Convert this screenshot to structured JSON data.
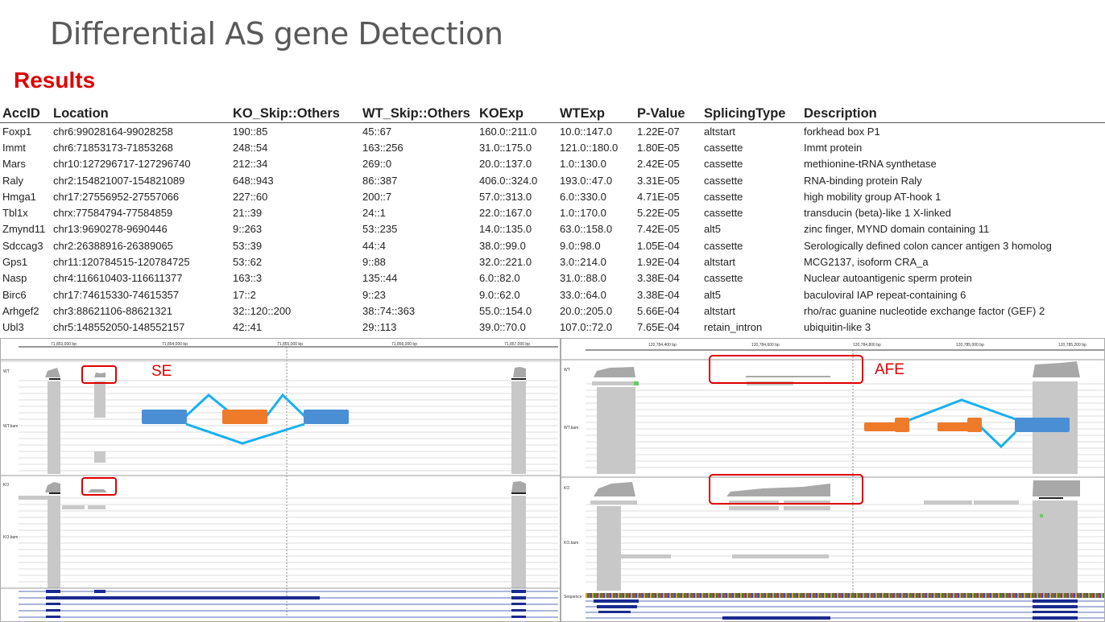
{
  "title": "Differential AS gene Detection",
  "subtitle": "Results",
  "table": {
    "columns": [
      "AccID",
      "Location",
      "KO_Skip::Others",
      "WT_Skip::Others",
      "KOExp",
      "WTExp",
      "P-Value",
      "SplicingType",
      "Description"
    ],
    "rows": [
      [
        "Foxp1",
        "chr6:99028164-99028258",
        "190::85",
        "45::67",
        "160.0::211.0",
        "10.0::147.0",
        "1.22E-07",
        "altstart",
        "forkhead box P1"
      ],
      [
        "Immt",
        "chr6:71853173-71853268",
        "248::54",
        "163::256",
        "31.0::175.0",
        "121.0::180.0",
        "1.80E-05",
        "cassette",
        "Immt protein"
      ],
      [
        "Mars",
        "chr10:127296717-127296740",
        "212::34",
        "269::0",
        "20.0::137.0",
        "1.0::130.0",
        "2.42E-05",
        "cassette",
        "methionine-tRNA synthetase"
      ],
      [
        "Raly",
        "chr2:154821007-154821089",
        "648::943",
        "86::387",
        "406.0::324.0",
        "193.0::47.0",
        "3.31E-05",
        "cassette",
        "RNA-binding protein Raly"
      ],
      [
        "Hmga1",
        "chr17:27556952-27557066",
        "227::60",
        "200::7",
        "57.0::313.0",
        "6.0::330.0",
        "4.71E-05",
        "cassette",
        "high mobility group AT-hook 1"
      ],
      [
        "Tbl1x",
        "chrx:77584794-77584859",
        "21::39",
        "24::1",
        "22.0::167.0",
        "1.0::170.0",
        "5.22E-05",
        "cassette",
        "transducin (beta)-like 1 X-linked"
      ],
      [
        "Zmynd11",
        "chr13:9690278-9690446",
        "9::263",
        "53::235",
        "14.0::135.0",
        "63.0::158.0",
        "7.42E-05",
        "alt5",
        "zinc finger, MYND domain containing 11"
      ],
      [
        "Sdccag3",
        "chr2:26388916-26389065",
        "53::39",
        "44::4",
        "38.0::99.0",
        "9.0::98.0",
        "1.05E-04",
        "cassette",
        "Serologically defined colon cancer antigen 3 homolog"
      ],
      [
        "Gps1",
        "chr11:120784515-120784725",
        "53::62",
        "9::88",
        "32.0::221.0",
        "3.0::214.0",
        "1.92E-04",
        "altstart",
        "MCG2137, isoform CRA_a"
      ],
      [
        "Nasp",
        "chr4:116610403-116611377",
        "163::3",
        "135::44",
        "6.0::82.0",
        "31.0::88.0",
        "3.38E-04",
        "cassette",
        "Nuclear autoantigenic sperm protein"
      ],
      [
        "Birc6",
        "chr17:74615330-74615357",
        "17::2",
        "9::23",
        "9.0::62.0",
        "33.0::64.0",
        "3.38E-04",
        "alt5",
        "baculoviral IAP repeat-containing 6"
      ],
      [
        "Arhgef2",
        "chr3:88621106-88621321",
        "32::120::200",
        "38::74::363",
        "55.0::154.0",
        "20.0::205.0",
        "5.66E-04",
        "altstart",
        "rho/rac guanine nucleotide exchange factor (GEF) 2"
      ],
      [
        "Ubl3",
        "chr5:148552050-148552157",
        "42::41",
        "29::113",
        "39.0::70.0",
        "107.0::72.0",
        "7.65E-04",
        "retain_intron",
        "ubiquitin-like 3"
      ]
    ]
  },
  "left_panel": {
    "label": "SE",
    "ruler_ticks": [
      "71,853,000 bp",
      "71,854,000 bp",
      "71,855,000 bp",
      "71,856,000 bp",
      "71,857,000 bp"
    ],
    "track_labels": [
      "WT",
      "WT.bam",
      "KO",
      "KO.bam"
    ]
  },
  "right_panel": {
    "label": "AFE",
    "ruler_ticks": [
      "120,784,400 bp",
      "120,784,600 bp",
      "120,784,800 bp",
      "120,785,000 bp",
      "120,785,200 bp"
    ],
    "track_labels": [
      "WT",
      "WT.bam",
      "KO",
      "KO.bam",
      "Sequence"
    ]
  },
  "colors": {
    "exon_blue": "#4a8fd4",
    "exon_orange": "#ee7a2a",
    "junction": "#1ab0ee",
    "highlight": "#e00000"
  }
}
